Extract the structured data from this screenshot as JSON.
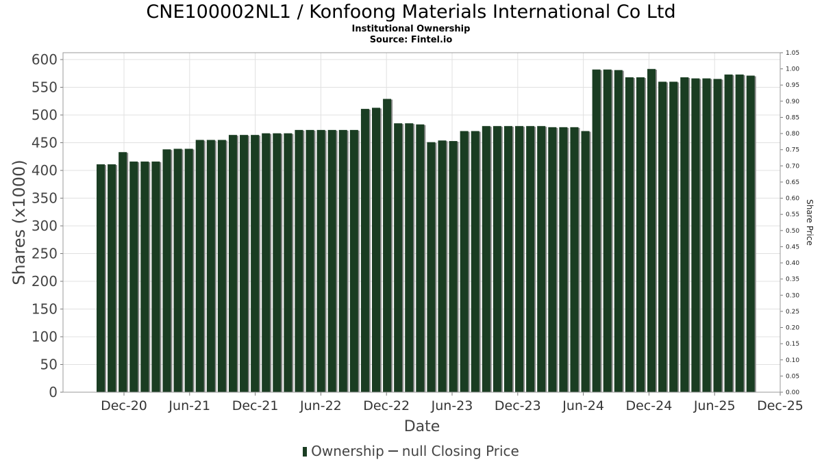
{
  "header": {
    "title": "CNE100002NL1 / Konfoong Materials International Co Ltd",
    "subtitle": "Institutional Ownership",
    "source": "Source: Fintel.io"
  },
  "legend": {
    "ownership": "Ownership",
    "price": "null Closing Price"
  },
  "colors": {
    "bar": "#1a3d22",
    "bar_shadow": "#8a8a8a",
    "grid": "#e0e0e0",
    "axis": "#777777"
  },
  "chart_data": {
    "type": "bar",
    "title": "CNE100002NL1 / Konfoong Materials International Co Ltd",
    "subtitle": "Institutional Ownership",
    "xlabel": "Date",
    "ylabel": "Shares (x1000)",
    "y2label": "Share Price",
    "ylim": [
      0,
      610
    ],
    "y2lim": [
      0,
      1.05
    ],
    "yticks": [
      0,
      50,
      100,
      150,
      200,
      250,
      300,
      350,
      400,
      450,
      500,
      550,
      600
    ],
    "y2ticks": [
      "0.00",
      "0.05",
      "0.10",
      "0.15",
      "0.20",
      "0.25",
      "0.30",
      "0.35",
      "0.40",
      "0.45",
      "0.50",
      "0.55",
      "0.60",
      "0.65",
      "0.70",
      "0.75",
      "0.80",
      "0.85",
      "0.90",
      "0.95",
      "1.00",
      "1.05"
    ],
    "xticks": [
      "Dec-20",
      "Jun-21",
      "Dec-21",
      "Jun-22",
      "Dec-22",
      "Jun-23",
      "Dec-23",
      "Jun-24",
      "Dec-24",
      "Jun-25",
      "Dec-25"
    ],
    "grid": true,
    "legend_position": "bottom",
    "series": [
      {
        "name": "Ownership",
        "values": [
          411,
          411,
          433,
          416,
          416,
          416,
          438,
          439,
          439,
          455,
          455,
          455,
          464,
          464,
          464,
          467,
          467,
          467,
          473,
          473,
          473,
          473,
          473,
          473,
          511,
          513,
          529,
          485,
          485,
          483,
          451,
          454,
          453,
          471,
          471,
          480,
          480,
          480,
          480,
          480,
          480,
          478,
          478,
          478,
          471,
          582,
          582,
          581,
          568,
          568,
          583,
          560,
          560,
          568,
          566,
          566,
          565,
          573,
          573,
          571
        ]
      },
      {
        "name": "null Closing Price",
        "values": []
      }
    ]
  }
}
